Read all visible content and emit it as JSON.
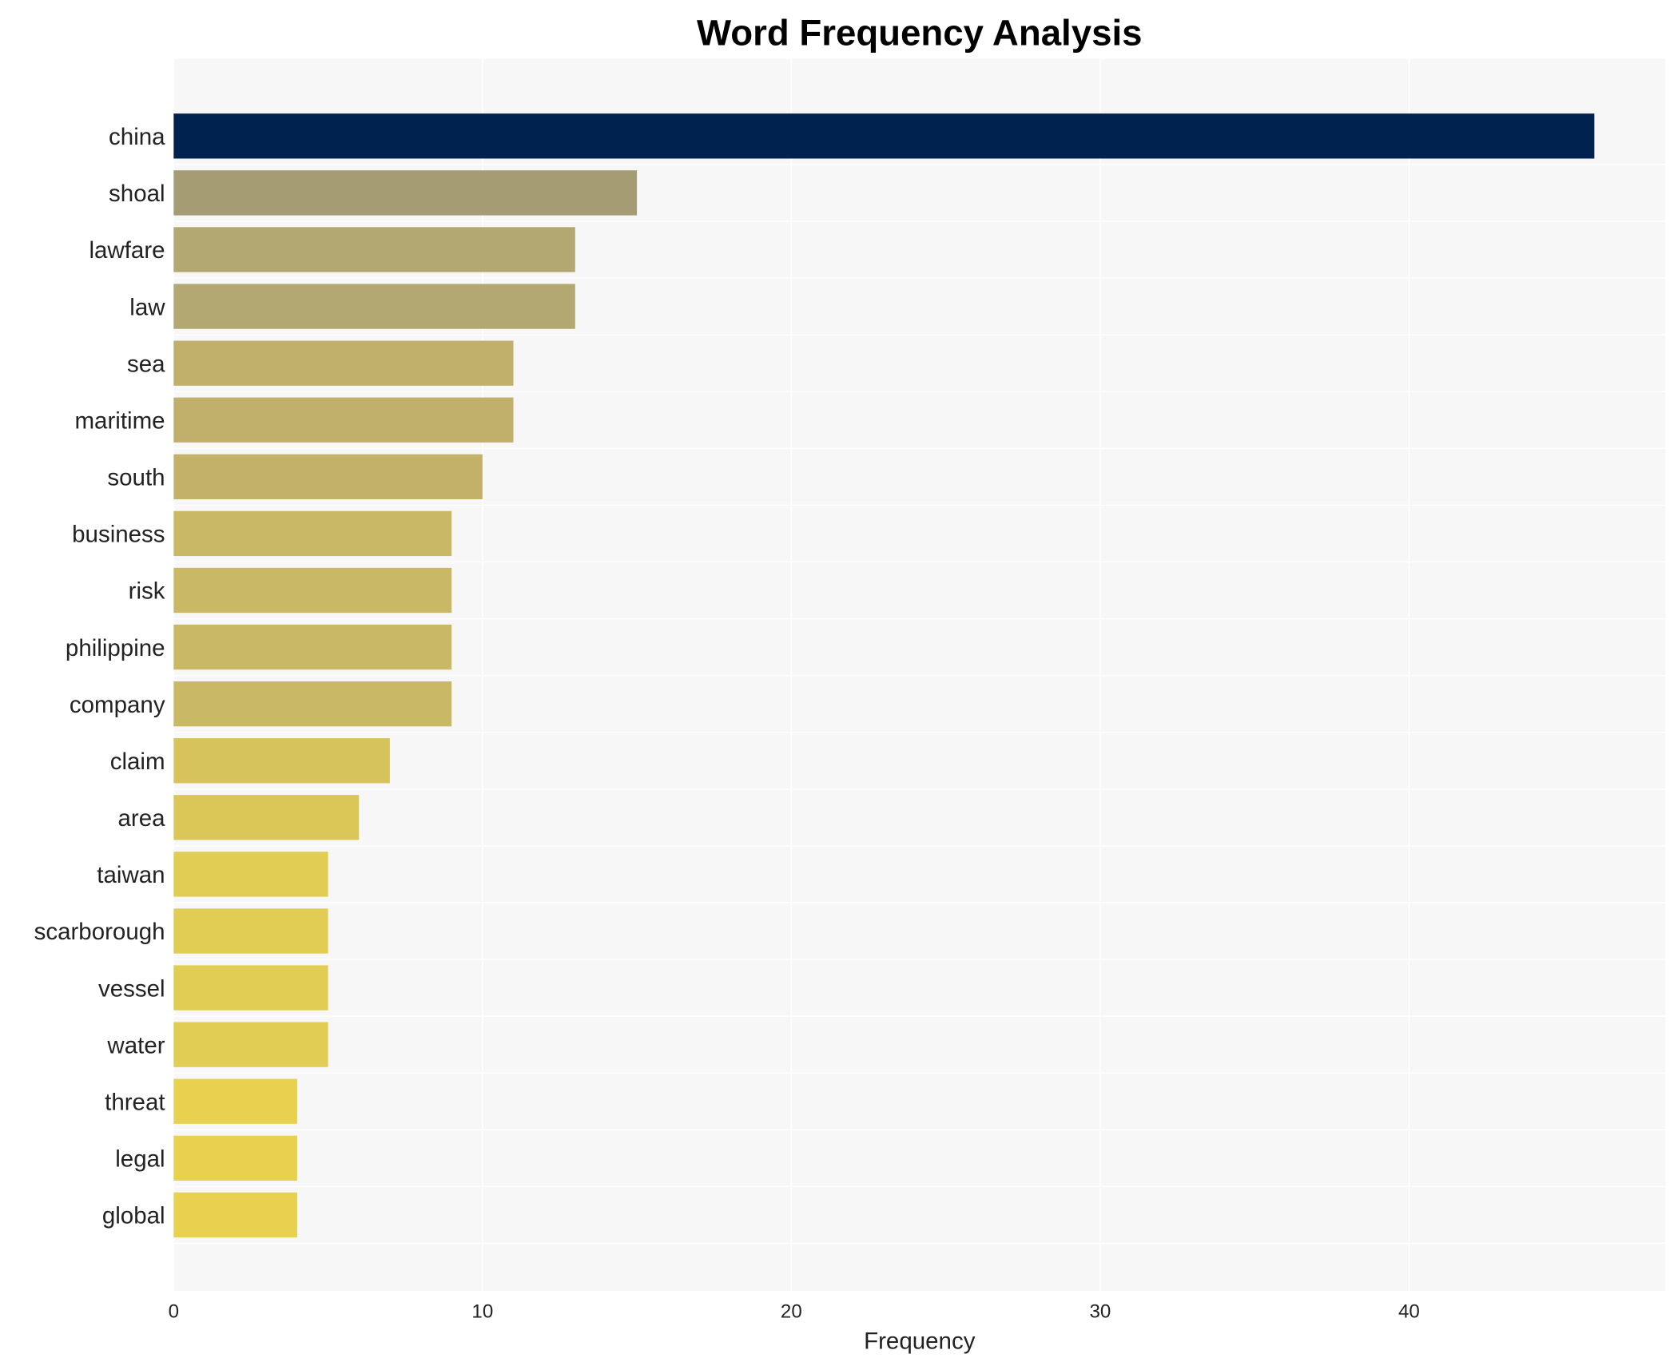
{
  "chart_data": {
    "type": "bar",
    "orientation": "horizontal",
    "title": "Word Frequency Analysis",
    "xlabel": "Frequency",
    "ylabel": "",
    "xlim": [
      0,
      48.3
    ],
    "xticks": [
      0,
      10,
      20,
      30,
      40
    ],
    "grid": true,
    "categories": [
      "china",
      "shoal",
      "lawfare",
      "law",
      "sea",
      "maritime",
      "south",
      "business",
      "risk",
      "philippine",
      "company",
      "claim",
      "area",
      "taiwan",
      "scarborough",
      "vessel",
      "water",
      "threat",
      "legal",
      "global"
    ],
    "values": [
      46,
      15,
      13,
      13,
      11,
      11,
      10,
      9,
      9,
      9,
      9,
      7,
      6,
      5,
      5,
      5,
      5,
      4,
      4,
      4
    ],
    "colors": [
      "#00224e",
      "#a59c74",
      "#b3a772",
      "#b3a772",
      "#c1b06b",
      "#c1b06b",
      "#c3b16a",
      "#c9b866",
      "#c9b866",
      "#c9b866",
      "#c9b866",
      "#d6c35c",
      "#dbc758",
      "#e1cd54",
      "#e1cd54",
      "#e1cd54",
      "#e1cd54",
      "#e7d14f",
      "#e7d14f",
      "#e7d14f"
    ],
    "background": "#f7f7f7"
  }
}
